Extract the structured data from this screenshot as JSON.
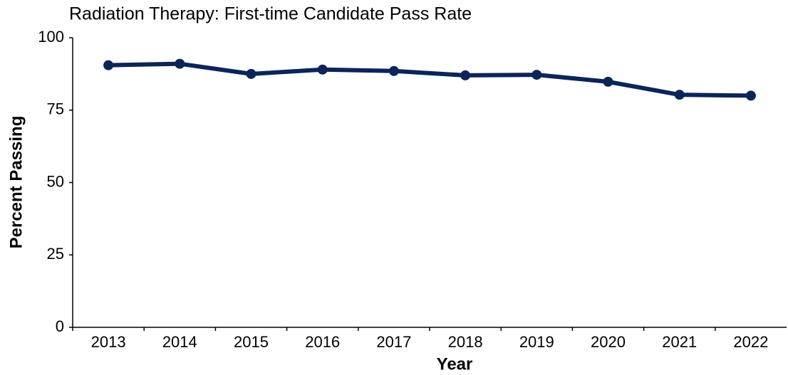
{
  "chart_data": {
    "type": "line",
    "title": "Radiation Therapy: First-time Candidate Pass Rate",
    "x_label": "Year",
    "y_label": "Percent Passing",
    "categories": [
      "2013",
      "2014",
      "2015",
      "2016",
      "2017",
      "2018",
      "2019",
      "2020",
      "2021",
      "2022"
    ],
    "series": [
      {
        "name": "Pass Rate",
        "color": "#0b2559",
        "values": [
          90.5,
          91,
          87.5,
          89,
          88.5,
          87,
          87.2,
          84.8,
          80.3,
          80
        ]
      }
    ],
    "ylim": [
      0,
      100
    ],
    "yticks": [
      0,
      25,
      50,
      75,
      100
    ],
    "grid": false
  }
}
